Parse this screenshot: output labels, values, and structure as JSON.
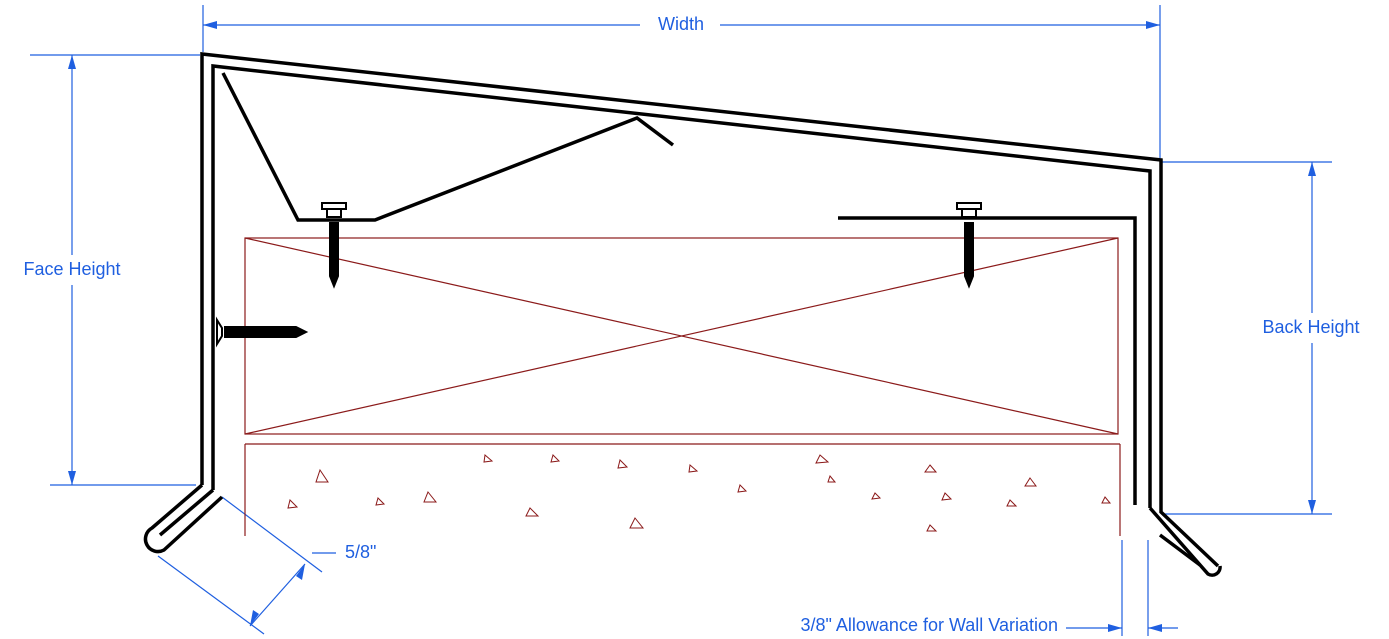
{
  "labels": {
    "width": "Width",
    "face_height": "Face Height",
    "back_height": "Back Height",
    "flange": "5/8\"",
    "allowance": "3/8\" Allowance for Wall Variation"
  }
}
